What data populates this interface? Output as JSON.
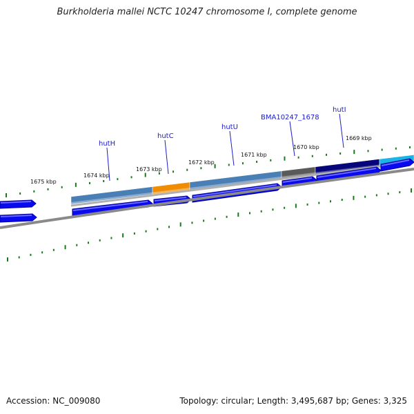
{
  "title": "Burkholderia mallei NCTC 10247 chromosome I, complete genome",
  "footer": {
    "accession": "Accession: NC_009080",
    "stats": "Topology: circular; Length: 3,495,687 bp; Genes: 3,325"
  },
  "colors": {
    "tick": "#1a7a1a",
    "cds_forward": "#0a0af0",
    "cds_forward_shadow": "#00009a",
    "backbone": "#8a8a8a",
    "label": "#1a1acc"
  },
  "kbp_ticks": [
    "1675 kbp",
    "1674 kbp",
    "1673 kbp",
    "1672 kbp",
    "1671 kbp",
    "1670 kbp",
    "1669 kbp"
  ],
  "genes": [
    {
      "label": "hutH",
      "color": "#4a7fb5"
    },
    {
      "label": "hutC",
      "color": "#f08c00"
    },
    {
      "label": "hutU",
      "color": "#4a7fb5"
    },
    {
      "label": "BMA10247_1678",
      "color": "#5a5a5a"
    },
    {
      "label": "hutI",
      "color": "#06067a"
    },
    {
      "label": "",
      "color": "#1ab4e6"
    }
  ]
}
